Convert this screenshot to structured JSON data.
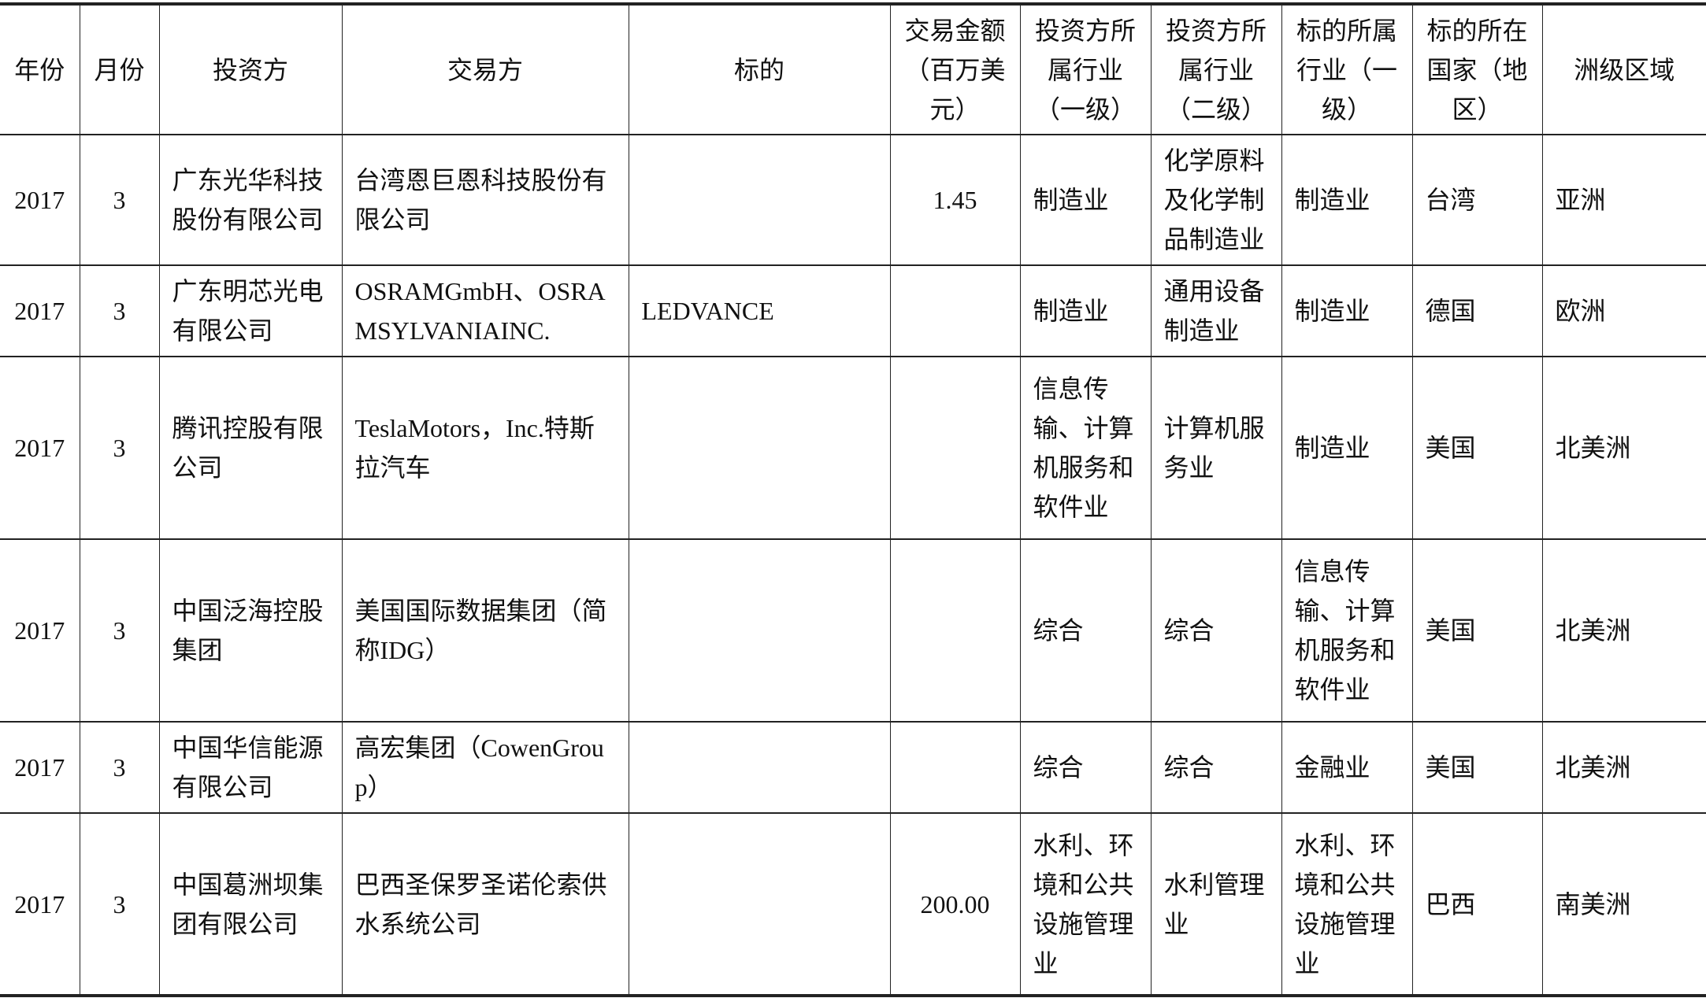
{
  "headers": [
    "年份",
    "月份",
    "投资方",
    "交易方",
    "标的",
    "交易金额（百万美元）",
    "投资方所属行业（一级）",
    "投资方所属行业（二级）",
    "标的所属行业（一级）",
    "标的所在国家（地区）",
    "洲级区域"
  ],
  "rows": [
    {
      "year": "2017",
      "month": "3",
      "investor": "广东光华科技股份有限公司",
      "counterparty": "台湾恩巨恩科技股份有限公司",
      "target": "",
      "amount": "1.45",
      "inv_ind1": "制造业",
      "inv_ind2": "化学原料及化学制品制造业",
      "tgt_ind1": "制造业",
      "country": "台湾",
      "region": "亚洲"
    },
    {
      "year": "2017",
      "month": "3",
      "investor": "广东明芯光电有限公司",
      "counterparty": "OSRAMGmbH、OSRAMSYLVANIAINC.",
      "target": "LEDVANCE",
      "amount": "",
      "inv_ind1": "制造业",
      "inv_ind2": "通用设备制造业",
      "tgt_ind1": "制造业",
      "country": "德国",
      "region": "欧洲"
    },
    {
      "year": "2017",
      "month": "3",
      "investor": "腾讯控股有限公司",
      "counterparty": "TeslaMotors，Inc.特斯拉汽车",
      "target": "",
      "amount": "",
      "inv_ind1": "信息传输、计算机服务和软件业",
      "inv_ind2": "计算机服务业",
      "tgt_ind1": "制造业",
      "country": "美国",
      "region": "北美洲"
    },
    {
      "year": "2017",
      "month": "3",
      "investor": "中国泛海控股集团",
      "counterparty": "美国国际数据集团（简称IDG）",
      "target": "",
      "amount": "",
      "inv_ind1": "综合",
      "inv_ind2": "综合",
      "tgt_ind1": "信息传输、计算机服务和软件业",
      "country": "美国",
      "region": "北美洲"
    },
    {
      "year": "2017",
      "month": "3",
      "investor": "中国华信能源有限公司",
      "counterparty": "高宏集团（CowenGroup）",
      "target": "",
      "amount": "",
      "inv_ind1": "综合",
      "inv_ind2": "综合",
      "tgt_ind1": "金融业",
      "country": "美国",
      "region": "北美洲"
    },
    {
      "year": "2017",
      "month": "3",
      "investor": "中国葛洲坝集团有限公司",
      "counterparty": "巴西圣保罗圣诺伦索供水系统公司",
      "target": "",
      "amount": "200.00",
      "inv_ind1": "水利、环境和公共设施管理业",
      "inv_ind2": "水利管理业",
      "tgt_ind1": "水利、环境和公共设施管理业",
      "country": "巴西",
      "region": "南美洲"
    }
  ]
}
